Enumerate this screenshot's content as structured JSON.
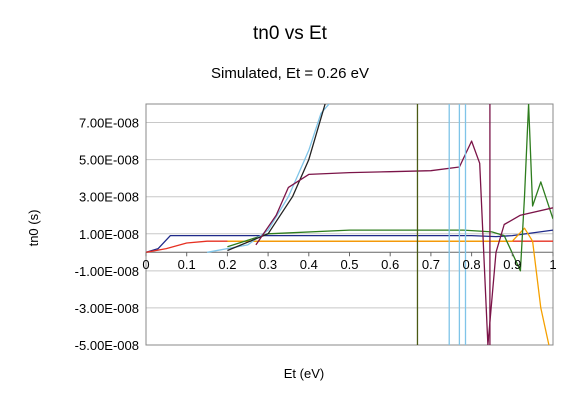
{
  "chart_data": {
    "type": "line",
    "title": "tn0 vs Et",
    "subtitle": "Simulated, Et = 0.26 eV",
    "xlabel": "Et (eV)",
    "ylabel": "tn0 (s)",
    "xlim": [
      0,
      1
    ],
    "ylim": [
      -5e-08,
      8e-08
    ],
    "x_ticks": [
      "0",
      "0.1",
      "0.2",
      "0.3",
      "0.4",
      "0.5",
      "0.6",
      "0.7",
      "0.8",
      "0.9",
      "1"
    ],
    "y_ticks": [
      "7.00E-008",
      "5.00E-008",
      "3.00E-008",
      "1.00E-008",
      "-1.00E-008",
      "-3.00E-008",
      "-5.00E-008"
    ],
    "grid": "horizontal",
    "legend": "none",
    "series": [
      {
        "color": "#1f2a8a",
        "points": [
          [
            0,
            0
          ],
          [
            0.03,
            2e-09
          ],
          [
            0.06,
            9e-09
          ],
          [
            0.3,
            9e-09
          ],
          [
            0.55,
            9e-09
          ],
          [
            0.8,
            9e-09
          ],
          [
            0.86,
            8.5e-09
          ],
          [
            0.9,
            9e-09
          ],
          [
            1,
            1.2e-08
          ]
        ]
      },
      {
        "color": "#e63022",
        "points": [
          [
            0,
            0
          ],
          [
            0.05,
            2e-09
          ],
          [
            0.1,
            5e-09
          ],
          [
            0.15,
            6e-09
          ],
          [
            0.3,
            6e-09
          ],
          [
            0.6,
            6e-09
          ],
          [
            1,
            6e-09
          ]
        ]
      },
      {
        "color": "#f5a000",
        "points": [
          [
            0.2,
            6e-09
          ],
          [
            0.5,
            6e-09
          ],
          [
            0.8,
            6e-09
          ],
          [
            0.86,
            6e-09
          ],
          [
            0.9,
            6e-09
          ],
          [
            0.93,
            1.3e-08
          ],
          [
            0.95,
            6e-09
          ],
          [
            0.97,
            -3e-08
          ],
          [
            0.99,
            -5e-08
          ]
        ]
      },
      {
        "color": "#2e7d1e",
        "points": [
          [
            0.2,
            3e-09
          ],
          [
            0.3,
            1e-08
          ],
          [
            0.5,
            1.2e-08
          ],
          [
            0.78,
            1.2e-08
          ],
          [
            0.85,
            1.1e-08
          ],
          [
            0.88,
            9e-09
          ],
          [
            0.92,
            -1e-08
          ],
          [
            0.93,
            3e-08
          ],
          [
            0.94,
            8e-08
          ],
          [
            0.95,
            2.5e-08
          ],
          [
            0.97,
            3.8e-08
          ],
          [
            1,
            1.8e-08
          ]
        ]
      },
      {
        "color": "#7fc4e8",
        "points": [
          [
            0.15,
            0
          ],
          [
            0.25,
            4e-09
          ],
          [
            0.3,
            1.2e-08
          ],
          [
            0.35,
            3e-08
          ],
          [
            0.4,
            5.5e-08
          ],
          [
            0.43,
            7.5e-08
          ],
          [
            0.45,
            8e-08
          ]
        ]
      },
      {
        "color": "#222222",
        "points": [
          [
            0.2,
            1e-09
          ],
          [
            0.3,
            1e-08
          ],
          [
            0.36,
            3e-08
          ],
          [
            0.4,
            5e-08
          ],
          [
            0.44,
            8e-08
          ]
        ]
      },
      {
        "color": "#7b1448",
        "points": [
          [
            0.27,
            4e-09
          ],
          [
            0.32,
            2e-08
          ],
          [
            0.35,
            3.5e-08
          ],
          [
            0.4,
            4.2e-08
          ],
          [
            0.5,
            4.3e-08
          ],
          [
            0.6,
            4.35e-08
          ],
          [
            0.7,
            4.4e-08
          ],
          [
            0.77,
            4.6e-08
          ],
          [
            0.8,
            6e-08
          ],
          [
            0.82,
            4.8e-08
          ],
          [
            0.84,
            -5e-08
          ],
          [
            0.86,
            0
          ],
          [
            0.88,
            1.5e-08
          ],
          [
            0.92,
            2e-08
          ],
          [
            1,
            2.4e-08
          ]
        ]
      }
    ],
    "vertical_lines": [
      {
        "x": 0.667,
        "color": "#4a5a14"
      },
      {
        "x": 0.745,
        "color": "#7fc4e8"
      },
      {
        "x": 0.77,
        "color": "#7fc4e8"
      },
      {
        "x": 0.785,
        "color": "#7fc4e8"
      },
      {
        "x": 0.845,
        "color": "#7b1448"
      }
    ]
  }
}
